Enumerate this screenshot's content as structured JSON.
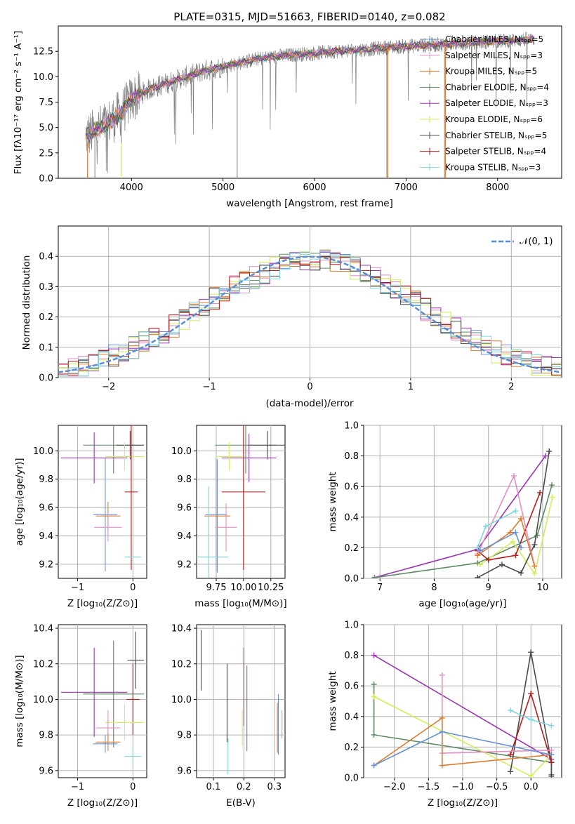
{
  "figure": {
    "title": "PLATE=0315, MJD=51663, FIBERID=0140, z=0.082"
  },
  "colors": {
    "grid": "#b0b0b0",
    "spectrum_data": "#7f7f7f",
    "chabrier_miles": "#6891d6",
    "salpeter_miles": "#e38fc3",
    "kroupa_miles": "#e07b2c",
    "chabrier_elodie": "#5e8a65",
    "salpeter_elodie": "#9a36b3",
    "kroupa_elodie": "#d4ed5a",
    "chabrier_stelib": "#4a4a4a",
    "salpeter_stelib": "#b51b1b",
    "kroupa_stelib": "#7fd7de",
    "normal": "#5b8cd6"
  },
  "chart_data": [
    {
      "id": "spectrum",
      "type": "line",
      "title": "PLATE=0315, MJD=51663, FIBERID=0140, z=0.082",
      "xlabel": "wavelength [Angstrom, rest frame]",
      "ylabel": "Flux [fλ10⁻¹⁷ erg cm⁻² s⁻¹ A⁻¹]",
      "xlim": [
        3200,
        8700
      ],
      "ylim": [
        0,
        15
      ],
      "xticks": [
        "4000",
        "5000",
        "6000",
        "7000",
        "8000"
      ],
      "yticks": [
        "0.0",
        "2.5",
        "5.0",
        "7.5",
        "10.0",
        "12.5"
      ],
      "legend": [
        "Chabrier MILES, Nₛₚₚ=5",
        "Salpeter MILES, Nₛₚₚ=3",
        "Kroupa MILES, Nₛₚₚ=5",
        "Chabrier ELODIE, Nₛₚₚ=4",
        "Salpeter ELODIE, Nₛₚₚ=3",
        "Kroupa ELODIE, Nₛₚₚ=6",
        "Chabrier STELIB, Nₛₚₚ=5",
        "Salpeter STELIB, Nₛₚₚ=4",
        "Kroupa STELIB, Nₛₚₚ=3"
      ],
      "legend_position": "top-right",
      "continuum_wavelength": [
        3500,
        3600,
        3700,
        3800,
        3900,
        4000,
        4200,
        4400,
        4600,
        4800,
        5000,
        5200,
        5400,
        5600,
        5800,
        6000,
        6200,
        6400,
        6600,
        6800,
        7000,
        7200,
        7400,
        7600,
        7800,
        8000,
        8200,
        8400
      ],
      "continuum_flux": [
        4.2,
        4.6,
        5.2,
        5.8,
        6.6,
        7.8,
        8.8,
        9.4,
        10.0,
        10.6,
        11.0,
        11.4,
        11.8,
        12.0,
        12.2,
        12.3,
        12.5,
        12.6,
        12.7,
        12.9,
        13.0,
        13.1,
        13.2,
        13.3,
        13.4,
        13.5,
        13.6,
        13.7
      ]
    },
    {
      "id": "residuals",
      "type": "line",
      "xlabel": "(data-model)/error",
      "ylabel": "Normed distribution",
      "xlim": [
        -2.5,
        2.5
      ],
      "ylim": [
        0,
        0.5
      ],
      "xticks": [
        "−2",
        "−1",
        "0",
        "1",
        "2"
      ],
      "yticks": [
        "0.0",
        "0.1",
        "0.2",
        "0.3",
        "0.4"
      ],
      "legend": [
        "𝒩(0, 1)"
      ],
      "legend_position": "top-right",
      "bin_centers": [
        -2.45,
        -2.35,
        -2.25,
        -2.15,
        -2.05,
        -1.95,
        -1.85,
        -1.75,
        -1.65,
        -1.55,
        -1.45,
        -1.35,
        -1.25,
        -1.15,
        -1.05,
        -0.95,
        -0.85,
        -0.75,
        -0.65,
        -0.55,
        -0.45,
        -0.35,
        -0.25,
        -0.15,
        -0.05,
        0.05,
        0.15,
        0.25,
        0.35,
        0.45,
        0.55,
        0.65,
        0.75,
        0.85,
        0.95,
        1.05,
        1.15,
        1.25,
        1.35,
        1.45,
        1.55,
        1.65,
        1.75,
        1.85,
        1.95,
        2.05,
        2.15,
        2.25,
        2.35,
        2.45
      ],
      "reference_histogram": [
        0.025,
        0.03,
        0.04,
        0.05,
        0.06,
        0.075,
        0.09,
        0.1,
        0.115,
        0.13,
        0.15,
        0.17,
        0.195,
        0.215,
        0.24,
        0.26,
        0.28,
        0.3,
        0.315,
        0.33,
        0.345,
        0.36,
        0.37,
        0.38,
        0.385,
        0.39,
        0.385,
        0.38,
        0.37,
        0.36,
        0.345,
        0.33,
        0.31,
        0.29,
        0.27,
        0.25,
        0.225,
        0.205,
        0.18,
        0.16,
        0.14,
        0.12,
        0.1,
        0.085,
        0.072,
        0.06,
        0.05,
        0.042,
        0.035,
        0.03
      ]
    },
    {
      "id": "age-vs-z",
      "type": "scatter",
      "xlabel": "Z [log₁₀(Z/Z⊙)]",
      "ylabel": "age  [log₁₀(age/yr)]",
      "xlim": [
        -1.35,
        0.25
      ],
      "ylim": [
        9.1,
        10.18
      ],
      "xticks": [
        "−1",
        "0"
      ],
      "yticks": [
        "9.2",
        "9.4",
        "9.6",
        "9.8",
        "10.0"
      ],
      "series": [
        {
          "color_key": "salpeter_elodie",
          "x": -0.7,
          "xerr": 0.6,
          "y": 9.95,
          "yerr": 0.18
        },
        {
          "color_key": "chabrier_elodie",
          "x": -0.35,
          "xerr": 0.55,
          "y": 10.04,
          "yerr": 0.2
        },
        {
          "color_key": "chabrier_stelib",
          "x": -0.05,
          "xerr": 0.25,
          "y": 10.04,
          "yerr": 0.1
        },
        {
          "color_key": "kroupa_elodie",
          "x": -0.15,
          "xerr": 0.35,
          "y": 9.96,
          "yerr": 0.1
        },
        {
          "color_key": "salpeter_stelib",
          "x": -0.03,
          "xerr": 0.12,
          "y": 9.71,
          "yerr": 0.55
        },
        {
          "color_key": "chabrier_miles",
          "x": -0.5,
          "xerr": 0.22,
          "y": 9.55,
          "yerr": 0.4
        },
        {
          "color_key": "kroupa_miles",
          "x": -0.45,
          "xerr": 0.22,
          "y": 9.54,
          "yerr": 0.1
        },
        {
          "color_key": "salpeter_miles",
          "x": -0.45,
          "xerr": 0.25,
          "y": 9.46,
          "yerr": 0.1
        },
        {
          "color_key": "kroupa_stelib",
          "x": 0.0,
          "xerr": 0.15,
          "y": 9.25,
          "yerr": 0.1
        }
      ]
    },
    {
      "id": "age-vs-mass",
      "type": "scatter",
      "xlabel": "mass [log₁₀(M/M⊙)]",
      "xlim": [
        9.57,
        10.38
      ],
      "ylim": [
        9.1,
        10.18
      ],
      "xticks": [
        "9.75",
        "10.00",
        "10.25"
      ],
      "yticks": [
        "9.2",
        "9.4",
        "9.6",
        "9.8",
        "10.0"
      ],
      "series": [
        {
          "color_key": "salpeter_elodie",
          "x": 10.05,
          "xerr": 0.25,
          "y": 9.95,
          "yerr": 0.17
        },
        {
          "color_key": "chabrier_elodie",
          "x": 10.02,
          "xerr": 0.28,
          "y": 10.04,
          "yerr": 0.2
        },
        {
          "color_key": "chabrier_stelib",
          "x": 10.22,
          "xerr": 0.18,
          "y": 10.04,
          "yerr": 0.1
        },
        {
          "color_key": "kroupa_elodie",
          "x": 9.87,
          "xerr": 0.12,
          "y": 9.96,
          "yerr": 0.1
        },
        {
          "color_key": "salpeter_stelib",
          "x": 10.0,
          "xerr": 0.2,
          "y": 9.71,
          "yerr": 0.55
        },
        {
          "color_key": "chabrier_miles",
          "x": 9.75,
          "xerr": 0.1,
          "y": 9.55,
          "yerr": 0.4
        },
        {
          "color_key": "kroupa_miles",
          "x": 9.76,
          "xerr": 0.12,
          "y": 9.54,
          "yerr": 0.4
        },
        {
          "color_key": "salpeter_miles",
          "x": 9.84,
          "xerr": 0.1,
          "y": 9.46,
          "yerr": 0.17
        },
        {
          "color_key": "kroupa_stelib",
          "x": 9.68,
          "xerr": 0.18,
          "y": 9.25,
          "yerr": 0.5
        }
      ]
    },
    {
      "id": "weight-vs-age",
      "type": "line",
      "xlabel": "age  [log₁₀(age/yr)]",
      "ylabel": "mass weight",
      "xlim": [
        6.7,
        10.35
      ],
      "ylim": [
        0,
        1.0
      ],
      "xticks": [
        "7",
        "8",
        "9",
        "10"
      ],
      "yticks": [
        "0.0",
        "0.2",
        "0.4",
        "0.6",
        "0.8",
        "1.0"
      ],
      "series": [
        {
          "color_key": "salpeter_elodie",
          "x": [
            6.9,
            8.8,
            10.05
          ],
          "y": [
            0.005,
            0.19,
            0.8
          ]
        },
        {
          "color_key": "chabrier_elodie",
          "x": [
            6.9,
            8.8,
            9.9,
            10.17
          ],
          "y": [
            0.005,
            0.1,
            0.28,
            0.61
          ]
        },
        {
          "color_key": "kroupa_elodie",
          "x": [
            8.85,
            9.45,
            9.85,
            10.18
          ],
          "y": [
            0.09,
            0.24,
            0.03,
            0.53
          ]
        },
        {
          "color_key": "chabrier_stelib",
          "x": [
            8.8,
            9.25,
            9.6,
            9.85,
            10.12
          ],
          "y": [
            0.005,
            0.09,
            0.035,
            0.22,
            0.83
          ]
        },
        {
          "color_key": "salpeter_stelib",
          "x": [
            8.8,
            9.0,
            9.5,
            9.95
          ],
          "y": [
            0.18,
            0.12,
            0.15,
            0.56
          ]
        },
        {
          "color_key": "salpeter_miles",
          "x": [
            8.8,
            9.47,
            9.85
          ],
          "y": [
            0.16,
            0.67,
            0.08
          ]
        },
        {
          "color_key": "kroupa_miles",
          "x": [
            8.8,
            9.4,
            9.6,
            9.85
          ],
          "y": [
            0.15,
            0.3,
            0.39,
            0.08
          ]
        },
        {
          "color_key": "chabrier_miles",
          "x": [
            8.85,
            9.5,
            9.6
          ],
          "y": [
            0.18,
            0.3,
            0.2
          ]
        },
        {
          "color_key": "kroupa_stelib",
          "x": [
            8.8,
            8.95,
            9.5
          ],
          "y": [
            0.2,
            0.34,
            0.44
          ]
        }
      ]
    },
    {
      "id": "mass-vs-z",
      "type": "scatter",
      "xlabel": "Z [log₁₀(Z/Z⊙)]",
      "ylabel": "mass [log₁₀(M/M⊙)]",
      "xlim": [
        -1.35,
        0.25
      ],
      "ylim": [
        9.56,
        10.42
      ],
      "xticks": [
        "−1",
        "0"
      ],
      "yticks": [
        "9.6",
        "9.8",
        "10.0",
        "10.2",
        "10.4"
      ],
      "series": [
        {
          "color_key": "chabrier_stelib",
          "x": 0.05,
          "xerr": 0.15,
          "y": 10.22,
          "yerr": 0.16
        },
        {
          "color_key": "salpeter_elodie",
          "x": -0.7,
          "xerr": 0.6,
          "y": 10.04,
          "yerr": 0.25
        },
        {
          "color_key": "chabrier_elodie",
          "x": -0.35,
          "xerr": 0.55,
          "y": 10.03,
          "yerr": 0.3
        },
        {
          "color_key": "salpeter_stelib",
          "x": 0.0,
          "xerr": 0.12,
          "y": 10.0,
          "yerr": 0.2
        },
        {
          "color_key": "kroupa_elodie",
          "x": -0.15,
          "xerr": 0.35,
          "y": 9.87,
          "yerr": 0.1
        },
        {
          "color_key": "salpeter_miles",
          "x": -0.45,
          "xerr": 0.22,
          "y": 9.84,
          "yerr": 0.1
        },
        {
          "color_key": "chabrier_miles",
          "x": -0.5,
          "xerr": 0.22,
          "y": 9.75,
          "yerr": 0.05
        },
        {
          "color_key": "kroupa_miles",
          "x": -0.45,
          "xerr": 0.22,
          "y": 9.76,
          "yerr": 0.05
        },
        {
          "color_key": "kroupa_stelib",
          "x": 0.0,
          "xerr": 0.15,
          "y": 9.68,
          "yerr": 0.06
        }
      ]
    },
    {
      "id": "mass-vs-ebv",
      "type": "scatter",
      "xlabel": "E(B-V)",
      "xlim": [
        0.045,
        0.335
      ],
      "ylim": [
        9.56,
        10.42
      ],
      "xticks": [
        "0.1",
        "0.2",
        "0.3"
      ],
      "yticks": [
        "9.6",
        "9.8",
        "10.0",
        "10.2",
        "10.4"
      ],
      "series": [
        {
          "color_key": "chabrier_stelib",
          "x": 0.06,
          "xerr": 0.0,
          "y": 10.22,
          "yerr": 0.17
        },
        {
          "color_key": "salpeter_elodie",
          "x": 0.2,
          "xerr": 0.0,
          "y": 10.07,
          "yerr": 0.22
        },
        {
          "color_key": "salpeter_stelib",
          "x": 0.145,
          "xerr": 0.0,
          "y": 9.98,
          "yerr": 0.22
        },
        {
          "color_key": "chabrier_elodie",
          "x": 0.21,
          "xerr": 0.0,
          "y": 9.95,
          "yerr": 0.24
        },
        {
          "color_key": "kroupa_elodie",
          "x": 0.195,
          "xerr": 0.0,
          "y": 9.84,
          "yerr": 0.1
        },
        {
          "color_key": "chabrier_miles",
          "x": 0.313,
          "xerr": 0.0,
          "y": 9.86,
          "yerr": 0.17
        },
        {
          "color_key": "kroupa_miles",
          "x": 0.31,
          "xerr": 0.0,
          "y": 9.84,
          "yerr": 0.14
        },
        {
          "color_key": "salpeter_miles",
          "x": 0.325,
          "xerr": 0.0,
          "y": 9.86,
          "yerr": 0.08
        },
        {
          "color_key": "kroupa_stelib",
          "x": 0.148,
          "xerr": 0.0,
          "y": 9.68,
          "yerr": 0.1
        }
      ]
    },
    {
      "id": "weight-vs-z",
      "type": "line",
      "xlabel": "Z [log₁₀(Z/Z⊙)]",
      "ylabel": "mass weight",
      "xlim": [
        -2.45,
        0.45
      ],
      "ylim": [
        0,
        1.0
      ],
      "xticks": [
        "−2.0",
        "−1.5",
        "−1.0",
        "−0.5",
        "0.0"
      ],
      "yticks": [
        "0.0",
        "0.2",
        "0.4",
        "0.6",
        "0.8",
        "1.0"
      ],
      "series": [
        {
          "color_key": "salpeter_elodie",
          "x": [
            -2.3,
            0.3
          ],
          "y": [
            0.8,
            0.12
          ]
        },
        {
          "color_key": "chabrier_elodie",
          "x": [
            -2.3,
            -2.3,
            0.3,
            0.3
          ],
          "y": [
            0.61,
            0.28,
            0.1,
            0.02
          ]
        },
        {
          "color_key": "kroupa_elodie",
          "x": [
            -2.3,
            0.0,
            0.3
          ],
          "y": [
            0.53,
            0.01,
            0.15
          ]
        },
        {
          "color_key": "chabrier_stelib",
          "x": [
            -0.3,
            0.0,
            0.3,
            0.3
          ],
          "y": [
            0.04,
            0.82,
            0.1,
            0.01
          ]
        },
        {
          "color_key": "salpeter_stelib",
          "x": [
            -0.3,
            0.0,
            0.3
          ],
          "y": [
            0.15,
            0.55,
            0.1
          ]
        },
        {
          "color_key": "salpeter_miles",
          "x": [
            -1.3,
            -1.3,
            0.3
          ],
          "y": [
            0.67,
            0.16,
            0.18
          ]
        },
        {
          "color_key": "kroupa_miles",
          "x": [
            -2.3,
            -1.3,
            -1.3,
            0.3
          ],
          "y": [
            0.08,
            0.39,
            0.08,
            0.15
          ]
        },
        {
          "color_key": "chabrier_miles",
          "x": [
            -2.3,
            -1.3,
            0.3
          ],
          "y": [
            0.08,
            0.3,
            0.15
          ]
        },
        {
          "color_key": "kroupa_stelib",
          "x": [
            -0.3,
            0.0,
            0.3
          ],
          "y": [
            0.44,
            0.38,
            0.34
          ]
        }
      ]
    }
  ]
}
